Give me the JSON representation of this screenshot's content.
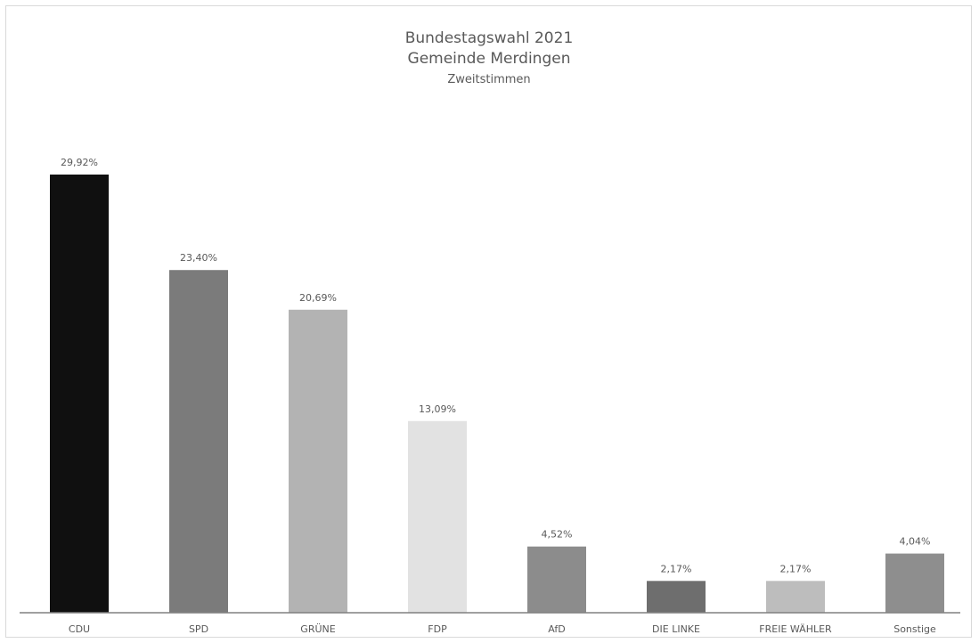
{
  "chart_data": {
    "type": "bar",
    "title": "Bundestagswahl 2021",
    "subtitle": "Gemeinde Merdingen",
    "subsubtitle": "Zweitstimmen",
    "categories": [
      "CDU",
      "SPD",
      "GRÜNE",
      "FDP",
      "AfD",
      "DIE LINKE",
      "FREIE WÄHLER",
      "Sonstige"
    ],
    "values": [
      29.92,
      23.4,
      20.69,
      13.09,
      4.52,
      2.17,
      2.17,
      4.04
    ],
    "value_labels": [
      "29,92%",
      "23,40%",
      "20,69%",
      "13,09%",
      "4,52%",
      "2,17%",
      "2,17%",
      "4,04%"
    ],
    "colors": [
      "#101010",
      "#7b7b7b",
      "#b3b3b3",
      "#e2e2e2",
      "#8c8c8c",
      "#6e6e6e",
      "#bdbdbd",
      "#8e8e8e"
    ],
    "ylim": [
      0,
      30
    ],
    "grid": false,
    "legend": "none",
    "xlabel": "",
    "ylabel": ""
  }
}
